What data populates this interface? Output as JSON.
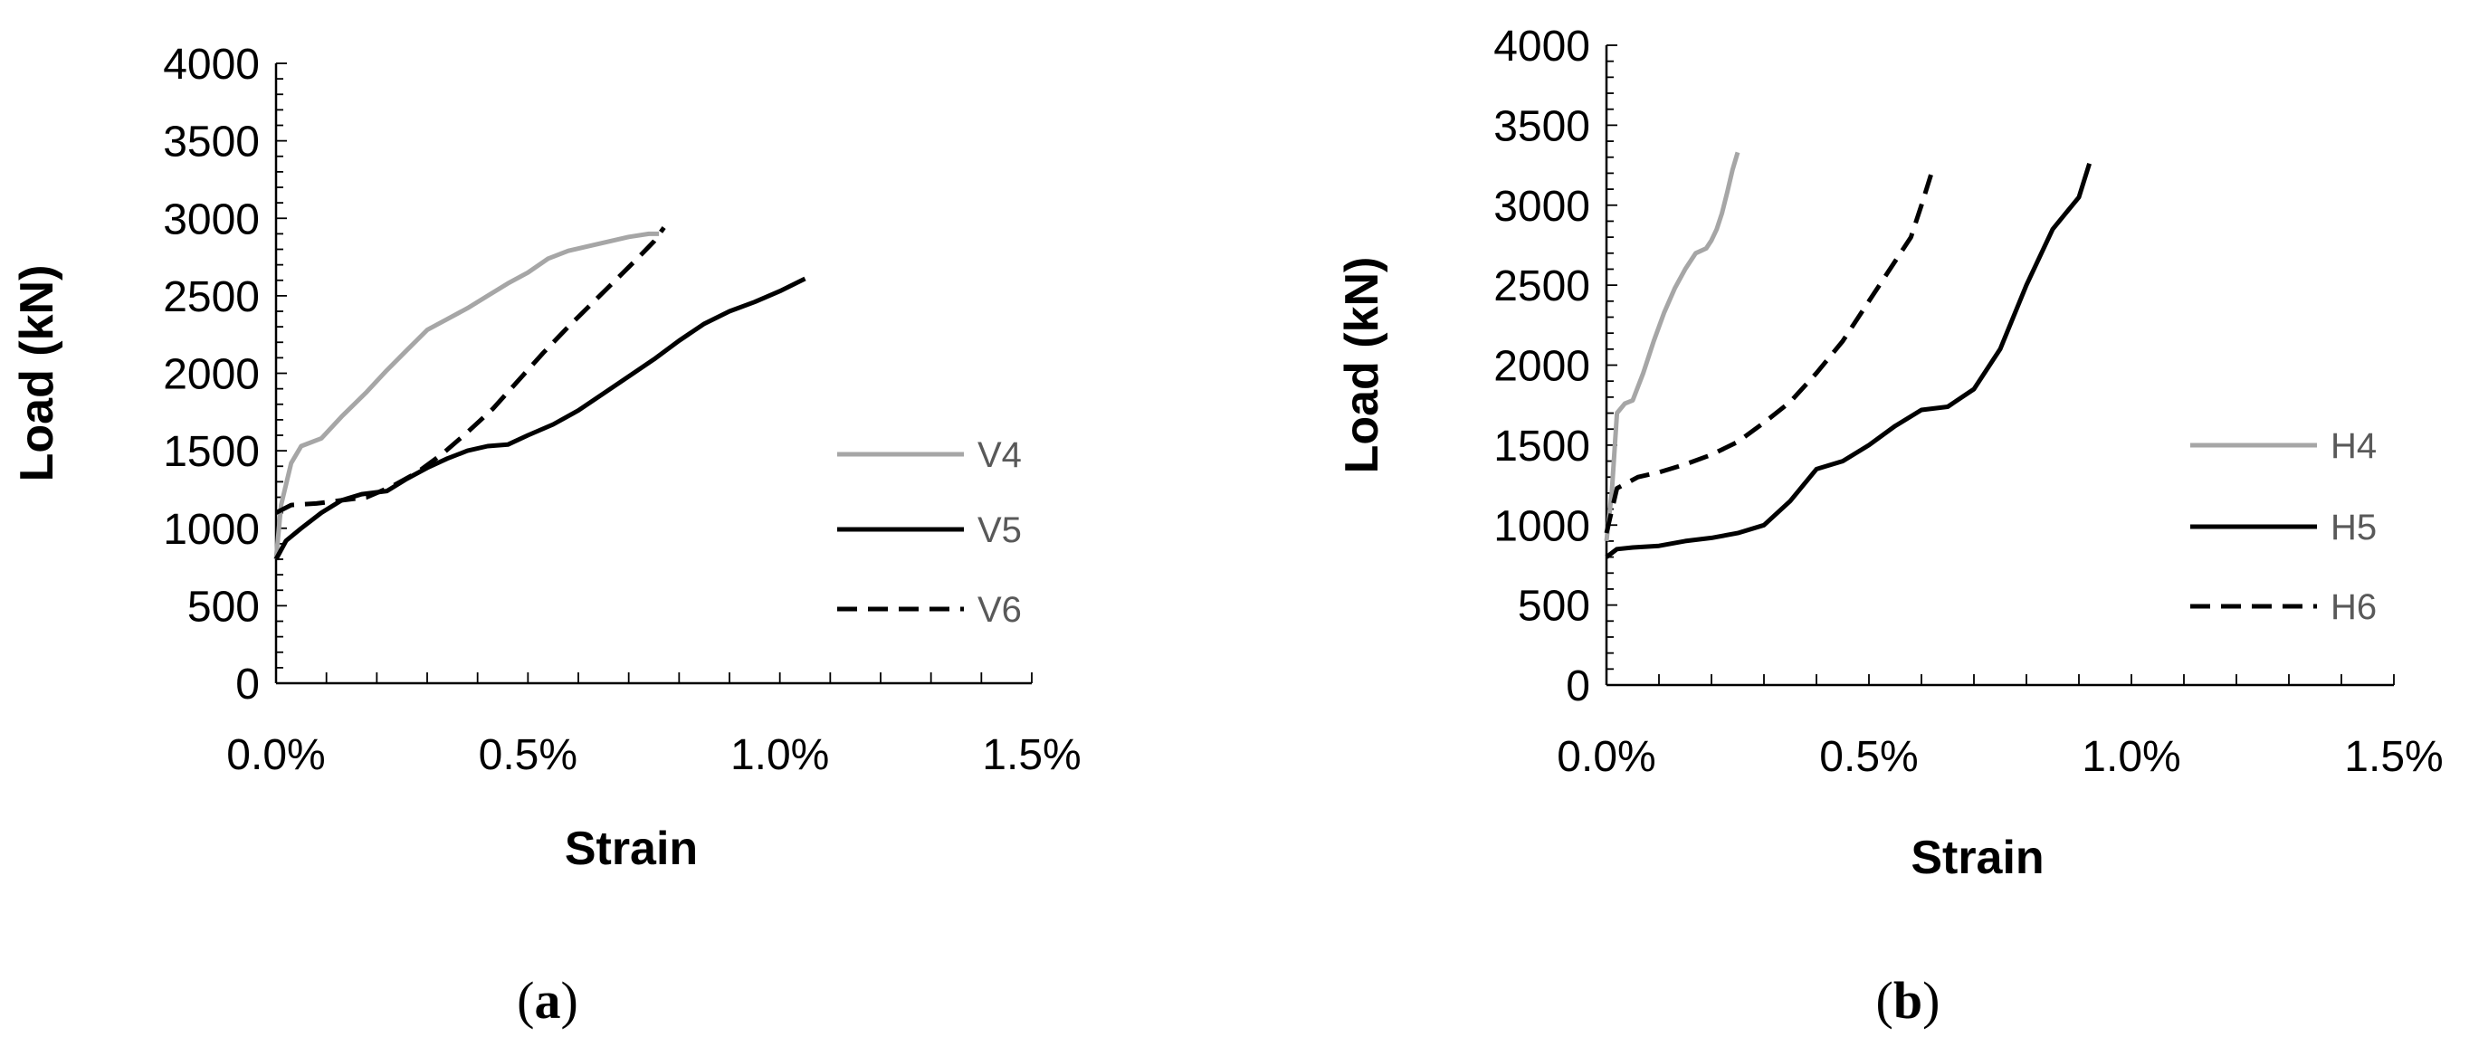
{
  "chart_data": [
    {
      "type": "line",
      "panel_label": {
        "open": "(",
        "letter": "a",
        "close": ")"
      },
      "xlabel": "Strain",
      "ylabel": "Load (kN)",
      "xlim": [
        0,
        0.015
      ],
      "ylim": [
        0,
        4000
      ],
      "x_ticks": [
        0,
        0.005,
        0.01,
        0.015
      ],
      "x_tick_labels": [
        "0.0%",
        "0.5%",
        "1.0%",
        "1.5%"
      ],
      "y_ticks": [
        0,
        500,
        1000,
        1500,
        2000,
        2500,
        3000,
        3500,
        4000
      ],
      "y_tick_labels": [
        "0",
        "500",
        "1000",
        "1500",
        "2000",
        "2500",
        "3000",
        "3500",
        "4000"
      ],
      "grid": false,
      "legend_position": "right",
      "series": [
        {
          "name": "V4",
          "color": "#a6a6a6",
          "dash": "solid",
          "x": [
            0,
            0.0001,
            0.0003,
            0.0005,
            0.0009,
            0.0013,
            0.0018,
            0.0022,
            0.0026,
            0.003,
            0.0034,
            0.0038,
            0.0042,
            0.0046,
            0.005,
            0.0054,
            0.0058,
            0.0062,
            0.0066,
            0.007,
            0.0074,
            0.0076
          ],
          "y": [
            800,
            1150,
            1420,
            1530,
            1580,
            1720,
            1880,
            2020,
            2150,
            2280,
            2350,
            2420,
            2500,
            2580,
            2650,
            2740,
            2790,
            2820,
            2850,
            2880,
            2900,
            2900
          ]
        },
        {
          "name": "V5",
          "color": "#000000",
          "dash": "solid",
          "x": [
            0,
            0.0002,
            0.0005,
            0.0009,
            0.0013,
            0.0017,
            0.0022,
            0.0026,
            0.003,
            0.0034,
            0.0038,
            0.0042,
            0.0046,
            0.005,
            0.0055,
            0.006,
            0.0065,
            0.007,
            0.0075,
            0.008,
            0.0085,
            0.009,
            0.0095,
            0.01,
            0.0105
          ],
          "y": [
            800,
            920,
            1000,
            1100,
            1180,
            1220,
            1240,
            1320,
            1390,
            1450,
            1500,
            1530,
            1540,
            1600,
            1670,
            1760,
            1870,
            1980,
            2090,
            2210,
            2320,
            2400,
            2460,
            2530,
            2610
          ]
        },
        {
          "name": "V6",
          "color": "#000000",
          "dash": "dashed",
          "x": [
            0,
            0.0003,
            0.0008,
            0.0013,
            0.0018,
            0.0023,
            0.0028,
            0.0033,
            0.0038,
            0.0043,
            0.0048,
            0.0053,
            0.0058,
            0.0063,
            0.0068,
            0.0072,
            0.0075,
            0.0077
          ],
          "y": [
            1100,
            1150,
            1160,
            1180,
            1200,
            1270,
            1360,
            1480,
            1620,
            1770,
            1950,
            2130,
            2300,
            2460,
            2620,
            2750,
            2850,
            2940
          ]
        }
      ]
    },
    {
      "type": "line",
      "panel_label": {
        "open": "(",
        "letter": "b",
        "close": ")"
      },
      "xlabel": "Strain",
      "ylabel": "Load (kN)",
      "xlim": [
        0,
        0.015
      ],
      "ylim": [
        0,
        4000
      ],
      "x_ticks": [
        0,
        0.005,
        0.01,
        0.015
      ],
      "x_tick_labels": [
        "0.0%",
        "0.5%",
        "1.0%",
        "1.5%"
      ],
      "y_ticks": [
        0,
        500,
        1000,
        1500,
        2000,
        2500,
        3000,
        3500,
        4000
      ],
      "y_tick_labels": [
        "0",
        "500",
        "1000",
        "1500",
        "2000",
        "2500",
        "3000",
        "3500",
        "4000"
      ],
      "grid": false,
      "legend_position": "right",
      "series": [
        {
          "name": "H4",
          "color": "#a6a6a6",
          "dash": "solid",
          "x": [
            0,
            0.0001,
            0.0002,
            0.00035,
            0.0005,
            0.0007,
            0.0009,
            0.0011,
            0.0013,
            0.0015,
            0.0017,
            0.0019,
            0.002,
            0.0021,
            0.0022,
            0.0023,
            0.0024,
            0.0025
          ],
          "y": [
            900,
            1200,
            1700,
            1760,
            1780,
            1950,
            2150,
            2330,
            2480,
            2600,
            2700,
            2730,
            2780,
            2850,
            2950,
            3080,
            3220,
            3330
          ]
        },
        {
          "name": "H5",
          "color": "#000000",
          "dash": "solid",
          "x": [
            0,
            0.0002,
            0.0005,
            0.001,
            0.0015,
            0.002,
            0.0025,
            0.003,
            0.0035,
            0.004,
            0.0045,
            0.005,
            0.0055,
            0.006,
            0.0065,
            0.007,
            0.0075,
            0.008,
            0.0085,
            0.009,
            0.0092
          ],
          "y": [
            800,
            850,
            860,
            870,
            900,
            920,
            950,
            1000,
            1150,
            1350,
            1400,
            1500,
            1620,
            1720,
            1740,
            1850,
            2100,
            2500,
            2850,
            3050,
            3260
          ]
        },
        {
          "name": "H6",
          "color": "#000000",
          "dash": "dashed",
          "x": [
            0,
            0.0002,
            0.0006,
            0.001,
            0.0015,
            0.002,
            0.0025,
            0.003,
            0.0035,
            0.004,
            0.0045,
            0.005,
            0.0055,
            0.0058,
            0.006,
            0.0062
          ],
          "y": [
            950,
            1230,
            1300,
            1330,
            1380,
            1440,
            1520,
            1640,
            1770,
            1950,
            2150,
            2400,
            2650,
            2800,
            3000,
            3210
          ]
        }
      ]
    }
  ]
}
